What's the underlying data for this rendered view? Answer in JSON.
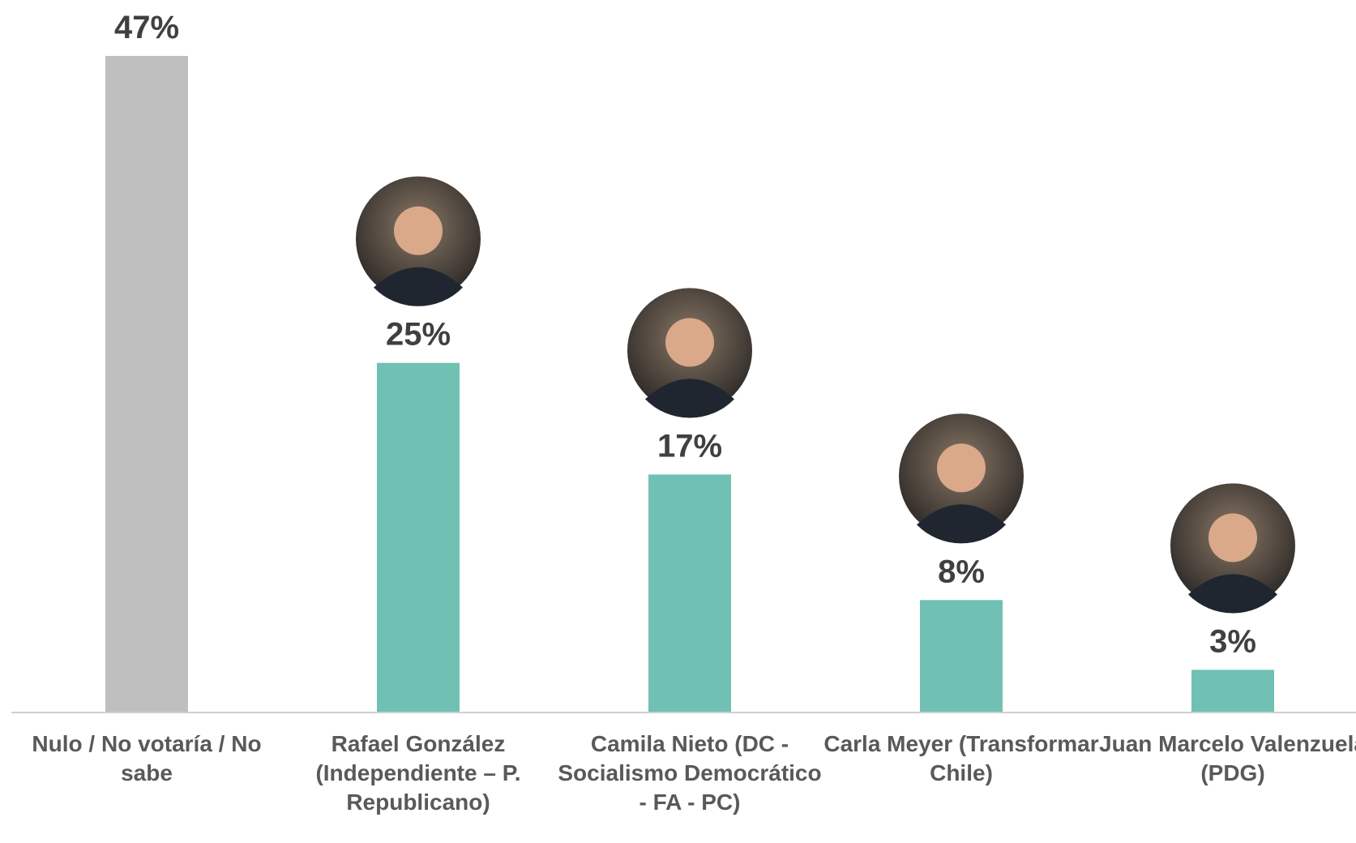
{
  "chart_data": {
    "type": "bar",
    "categories": [
      "Nulo / No votaría / No sabe",
      "Rafael González (Independiente – P. Republicano)",
      "Camila Nieto (DC - Socialismo Democrático - FA - PC)",
      "Carla Meyer (Transformar Chile)",
      "Juan Marcelo Valenzuela (PDG)"
    ],
    "values": [
      47,
      25,
      17,
      8,
      3
    ],
    "value_labels": [
      "47%",
      "25%",
      "17%",
      "8%",
      "3%"
    ],
    "colors": [
      "#bfbfbf",
      "#70c1b3",
      "#70c1b3",
      "#70c1b3",
      "#70c1b3"
    ]
  }
}
